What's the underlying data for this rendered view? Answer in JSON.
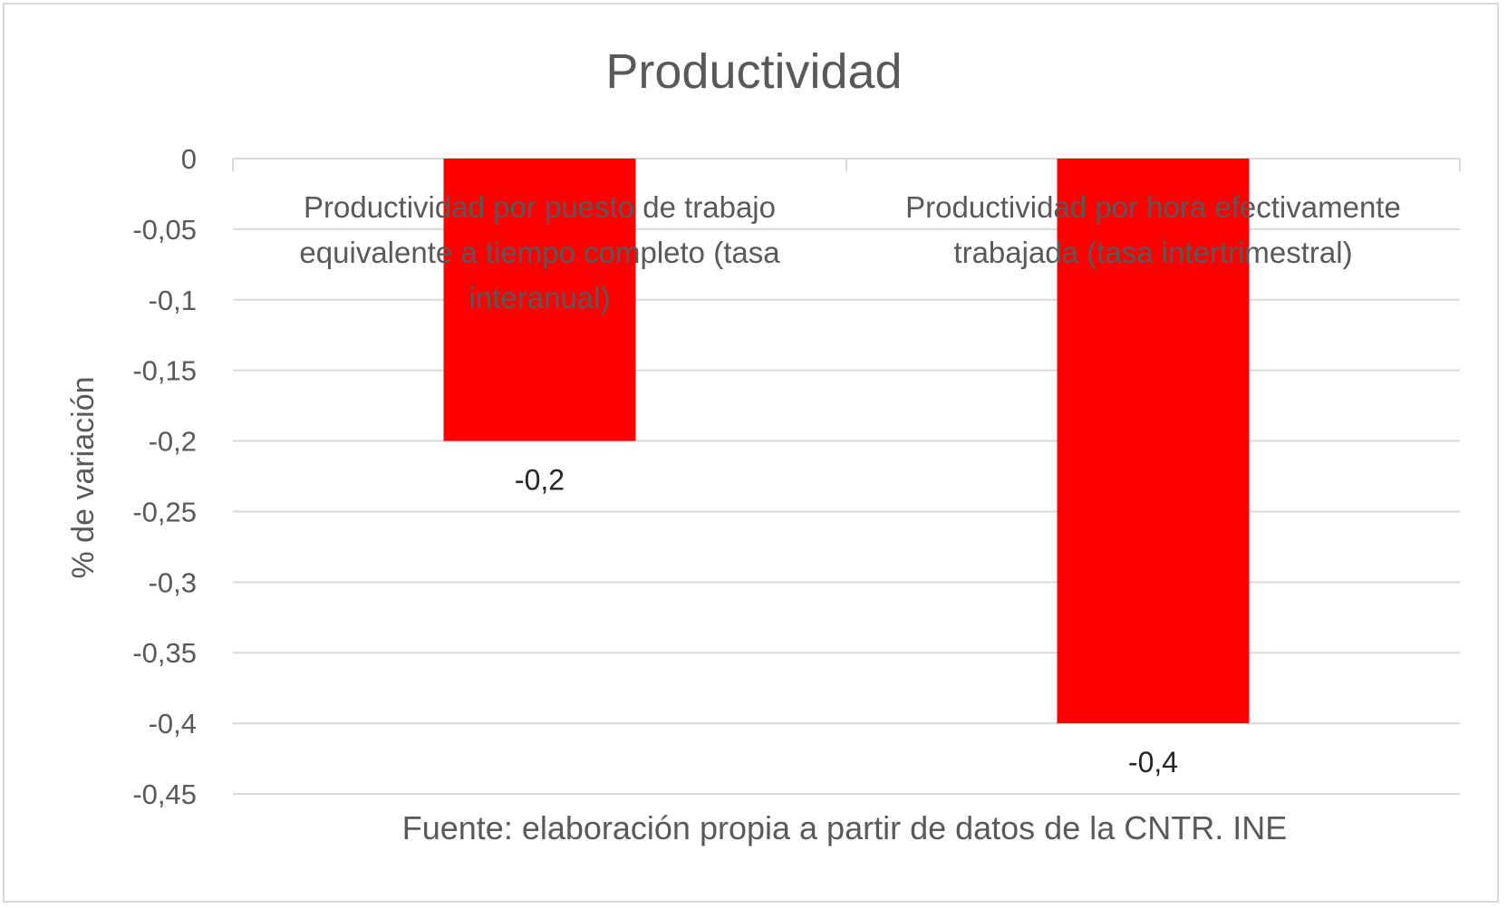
{
  "chart_data": {
    "type": "bar",
    "title": "Productividad",
    "categories": [
      [
        "Productividad por puesto de trabajo",
        "equivalente a tiempo completo (tasa",
        "interanual)"
      ],
      [
        "Productividad por hora efectivamente",
        "trabajada (tasa intertrimestral)"
      ]
    ],
    "values": [
      -0.2,
      -0.4
    ],
    "data_labels": [
      "-0,2",
      "-0,4"
    ],
    "ylabel": "% de variación",
    "xlabel": "Fuente: elaboración propia a partir de datos de la CNTR. INE",
    "ylim": [
      -0.45,
      0
    ],
    "yticks": [
      {
        "value": 0,
        "label": "0"
      },
      {
        "value": -0.05,
        "label": "-0,05"
      },
      {
        "value": -0.1,
        "label": "-0,1"
      },
      {
        "value": -0.15,
        "label": "-0,15"
      },
      {
        "value": -0.2,
        "label": "-0,2"
      },
      {
        "value": -0.25,
        "label": "-0,25"
      },
      {
        "value": -0.3,
        "label": "-0,3"
      },
      {
        "value": -0.35,
        "label": "-0,35"
      },
      {
        "value": -0.4,
        "label": "-0,4"
      },
      {
        "value": -0.45,
        "label": "-0,45"
      }
    ],
    "grid": true,
    "bar_color": "#ff0000",
    "grid_color": "#d9d9d9",
    "text_color": "#595959"
  }
}
